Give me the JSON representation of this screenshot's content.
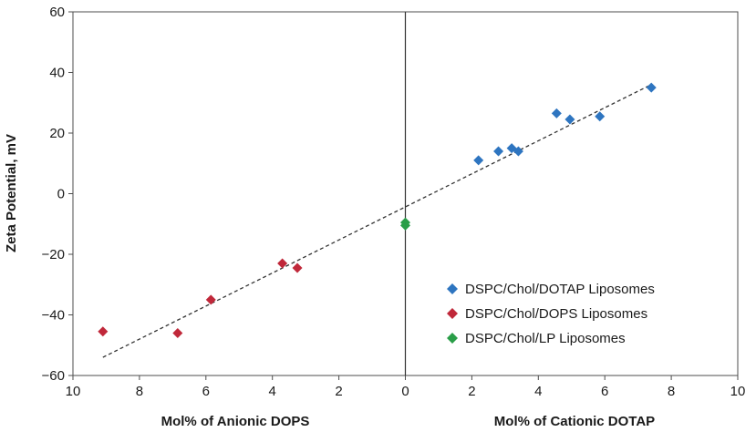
{
  "chart_data": {
    "type": "scatter",
    "title": "",
    "ylabel": "Zeta Potential, mV",
    "xlabel_left": "Mol% of Anionic DOPS",
    "xlabel_right": "Mol% of Cationic DOTAP",
    "xlim": [
      -10,
      10
    ],
    "ylim": [
      -60,
      60
    ],
    "x_ticks": [
      -10,
      -8,
      -6,
      -4,
      -2,
      0,
      2,
      4,
      6,
      8,
      10
    ],
    "x_tick_labels": [
      "10",
      "8",
      "6",
      "4",
      "2",
      "0",
      "2",
      "4",
      "6",
      "8",
      "10"
    ],
    "y_ticks": [
      -60,
      -40,
      -20,
      0,
      20,
      40,
      60
    ],
    "y_tick_labels": [
      "−60",
      "−40",
      "−20",
      "0",
      "20",
      "40",
      "60"
    ],
    "grid": false,
    "legend_position": "bottom-right",
    "series": [
      {
        "name": "DSPC/Chol/DOTAP Liposomes",
        "color": "#2e75c0",
        "marker": "diamond",
        "points": [
          [
            2.2,
            11
          ],
          [
            2.8,
            14
          ],
          [
            3.2,
            15
          ],
          [
            3.4,
            14
          ],
          [
            4.55,
            26.5
          ],
          [
            4.95,
            24.5
          ],
          [
            5.85,
            25.5
          ],
          [
            7.4,
            35
          ]
        ]
      },
      {
        "name": "DSPC/Chol/DOPS Liposomes",
        "color": "#c0283a",
        "marker": "diamond",
        "points": [
          [
            -9.1,
            -45.5
          ],
          [
            -6.85,
            -46
          ],
          [
            -5.85,
            -35
          ],
          [
            -3.7,
            -23
          ],
          [
            -3.25,
            -24.5
          ]
        ]
      },
      {
        "name": "DSPC/Chol/LP Liposomes",
        "color": "#2a9e48",
        "marker": "diamond",
        "points": [
          [
            0,
            -9.5
          ],
          [
            0,
            -10.5
          ]
        ]
      }
    ],
    "trendline": {
      "style": "dashed",
      "color": "#333333",
      "points": [
        [
          -9.1,
          -54
        ],
        [
          7.4,
          36
        ]
      ]
    }
  }
}
